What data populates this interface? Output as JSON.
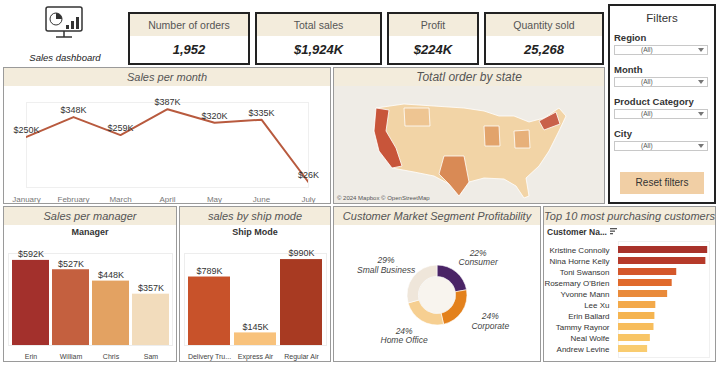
{
  "header": {
    "title": "Sales dashboard"
  },
  "kpis": [
    {
      "label": "Number of orders",
      "value": "1,952"
    },
    {
      "label": "Total sales",
      "value": "$1,924K"
    },
    {
      "label": "Profit",
      "value": "$224K"
    },
    {
      "label": "Quantity sold",
      "value": "25,268"
    }
  ],
  "filters": {
    "title": "Filters",
    "items": [
      {
        "label": "Region",
        "value": "(All)"
      },
      {
        "label": "Month",
        "value": "(All)"
      },
      {
        "label": "Product Category",
        "value": "(All)"
      },
      {
        "label": "City",
        "value": "(All)"
      }
    ],
    "button": "Reset filters"
  },
  "chart_data": [
    {
      "type": "line",
      "title": "Sales per month",
      "categories": [
        "January",
        "February",
        "March",
        "April",
        "May",
        "June",
        "July"
      ],
      "values": [
        250000,
        348000,
        259000,
        387000,
        320000,
        335000,
        26000
      ],
      "value_labels": [
        "$250K",
        "$348K",
        "$259K",
        "$387K",
        "$320K",
        "$335K",
        "$26K"
      ],
      "color": "#b85a3e",
      "ylim": [
        0,
        420000
      ],
      "data_labels": true,
      "tick_labels": "x"
    },
    {
      "type": "map",
      "title": "Totatl order by state",
      "annotations": [
        "© 2024 Mapbox © OpenStreetMap"
      ]
    },
    {
      "type": "bar",
      "title": "Sales per manager",
      "xlabel": "Manager",
      "categories": [
        "Erin",
        "William",
        "Chris",
        "Sam"
      ],
      "values": [
        592000,
        527000,
        448000,
        357000
      ],
      "value_labels": [
        "$592K",
        "$527K",
        "$448K",
        "$357K"
      ],
      "colors": [
        "#a3302c",
        "#c4603f",
        "#e3a262",
        "#f2dcbc"
      ],
      "ylim": [
        0,
        640000
      ],
      "data_labels": true,
      "tick_labels": "x"
    },
    {
      "type": "bar",
      "title": "sales by ship mode",
      "xlabel": "Ship Mode",
      "categories": [
        "Delivery Tru...",
        "Express Air",
        "Regular Air"
      ],
      "values": [
        789000,
        145000,
        990000
      ],
      "value_labels": [
        "$789K",
        "$145K",
        "$990K"
      ],
      "colors": [
        "#c8522a",
        "#f8c27c",
        "#a83a22"
      ],
      "ylim": [
        0,
        1060000
      ],
      "data_labels": true,
      "tick_labels": "x"
    },
    {
      "type": "pie",
      "title": "Customer Market Segment Profitability",
      "categories": [
        "Consumer",
        "Corporate",
        "Home Office",
        "Small Business"
      ],
      "values": [
        22,
        24,
        24,
        29
      ],
      "value_labels": [
        "22%",
        "24%",
        "24%",
        "29%"
      ],
      "colors": [
        "#4a2466",
        "#e3811c",
        "#f6cf91",
        "#efe6da"
      ],
      "data_labels": true
    },
    {
      "type": "bar",
      "orientation": "horizontal",
      "title": "Top 10 most purchasing customers",
      "ylabel": "Customer Na...",
      "categories": [
        "Kristine Connolly",
        "Nina Horne Kelly",
        "Toni Swanson",
        "Rosemary O'Brien",
        "Yvonne Mann",
        "Lee Xu",
        "Erin Ballard",
        "Tammy Raynor",
        "Neal Wolfe",
        "Andrew Levine"
      ],
      "values": [
        98,
        96,
        64,
        59,
        54,
        41,
        40,
        39,
        35,
        32
      ],
      "colors": [
        "#a8322a",
        "#b63a2a",
        "#d4572a",
        "#e06a2c",
        "#e98a3a",
        "#f3a94a",
        "#f5b450",
        "#f7bd5c",
        "#f8c566",
        "#f9cc70"
      ],
      "xlim": [
        0,
        100
      ],
      "tick_labels": "y"
    }
  ]
}
